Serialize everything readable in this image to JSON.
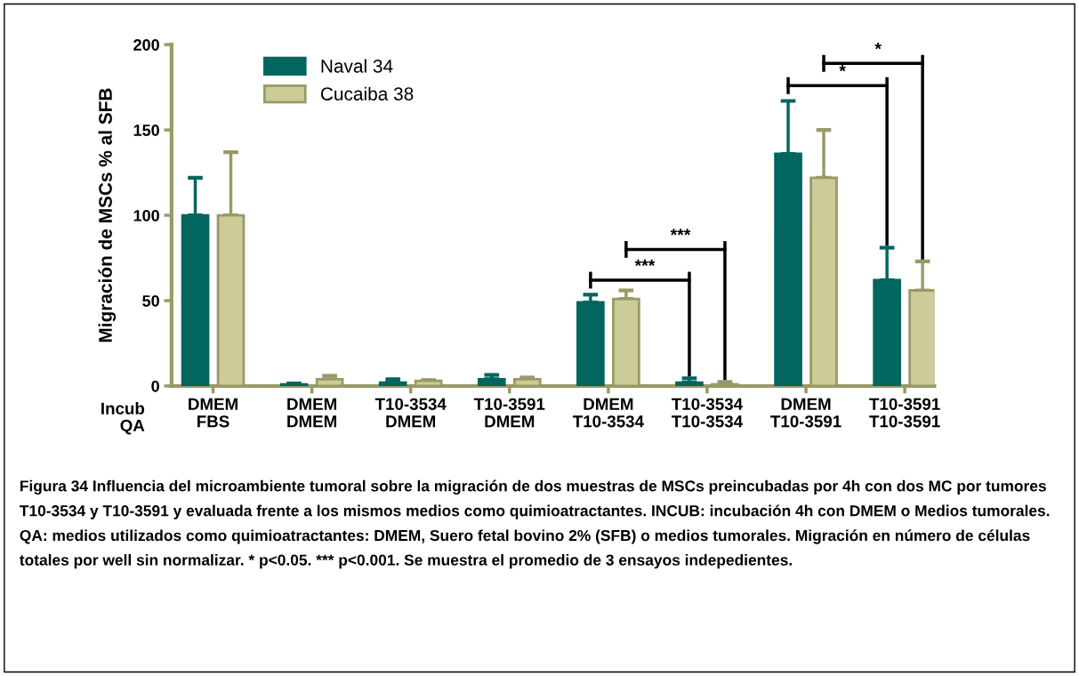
{
  "chart_data": {
    "type": "bar",
    "ylabel": "Migración de MSCs % al SFB",
    "categories": [
      "DMEM\nFBS",
      "DMEM\nDMEM",
      "T10-3534\nDMEM",
      "T10-3591\nDMEM",
      "DMEM\nT10-3534",
      "T10-3534\nT10-3534",
      "DMEM\nT10-3591",
      "T10-3591\nT10-3591"
    ],
    "series": [
      {
        "name": "Naval 34",
        "color": "#00665f",
        "values": [
          100,
          1,
          2,
          4,
          49,
          2,
          136,
          62
        ],
        "errors": [
          [
            100,
            122
          ],
          [
            1,
            1.5
          ],
          [
            2,
            4
          ],
          [
            4,
            6.5
          ],
          [
            49,
            53.5
          ],
          [
            2,
            4.5
          ],
          [
            136,
            167
          ],
          [
            62,
            81
          ]
        ]
      },
      {
        "name": "Cucaiba 38",
        "color": "#cccc99",
        "values": [
          100,
          4,
          3,
          4,
          51,
          1,
          122,
          56
        ],
        "errors": [
          [
            100,
            137
          ],
          [
            4,
            6
          ],
          [
            3,
            3.5
          ],
          [
            4,
            5
          ],
          [
            51,
            56
          ],
          [
            1,
            2.4
          ],
          [
            122,
            150
          ],
          [
            56,
            73
          ]
        ]
      }
    ],
    "ylim": [
      0,
      200
    ],
    "yticks": [
      0,
      50,
      100,
      150,
      200
    ],
    "legend": "top left",
    "annotations": [
      "Incub",
      "QA",
      "***",
      "***",
      "*",
      "*",
      "Figura 34 Influencia del microambiente tumoral sobre la migración de dos muestras de MSCs preincubadas por 4h con dos MC por tumores T10-3534 y T10-3591 y evaluada frente a los mismos medios como quimioatractantes. INCUB: incubación 4h con DMEM o Medios tumorales. QA: medios utilizados como quimioatractantes: DMEM, Suero fetal bovino 2% (SFB) o medios tumorales. Migración en número de células totales por well sin normalizar. * p<0.05. *** p<0.001. Se muestra el promedio de 3 ensayos indepedientes."
    ]
  }
}
